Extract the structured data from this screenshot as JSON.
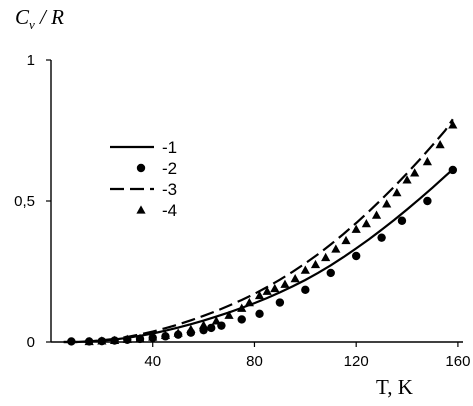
{
  "chart_data": {
    "type": "line",
    "title": "",
    "xlabel": "T, K",
    "ylabel": "C_v / R",
    "ylabel_parts": {
      "base": "C",
      "sub": "v",
      "rest": " / R"
    },
    "xlim": [
      0,
      160
    ],
    "ylim": [
      0,
      1
    ],
    "x_ticks": [
      40,
      80,
      120,
      160
    ],
    "x_tick_labels": [
      "40",
      "80",
      "120",
      "160"
    ],
    "y_ticks": [
      0,
      0.5,
      1
    ],
    "y_tick_labels": [
      "0",
      "0,5",
      "1"
    ],
    "grid": false,
    "legend_position": "left",
    "series": [
      {
        "name": "-1",
        "style": "solid-line",
        "color": "#000000",
        "x": [
          5,
          10,
          15,
          20,
          25,
          30,
          35,
          40,
          45,
          50,
          55,
          60,
          65,
          70,
          75,
          80,
          85,
          90,
          95,
          100,
          105,
          110,
          115,
          120,
          125,
          130,
          135,
          140,
          145,
          150,
          155,
          158
        ],
        "y": [
          0,
          0,
          0.002,
          0.005,
          0.009,
          0.015,
          0.022,
          0.03,
          0.04,
          0.051,
          0.063,
          0.076,
          0.09,
          0.105,
          0.121,
          0.138,
          0.156,
          0.176,
          0.197,
          0.22,
          0.245,
          0.272,
          0.301,
          0.332,
          0.364,
          0.398,
          0.433,
          0.47,
          0.508,
          0.547,
          0.588,
          0.612
        ]
      },
      {
        "name": "-2",
        "style": "circle-markers",
        "color": "#000000",
        "x": [
          8,
          15,
          20,
          25,
          30,
          35,
          40,
          45,
          50,
          55,
          60,
          63,
          67,
          75,
          82,
          90,
          100,
          110,
          120,
          130,
          138,
          148,
          158
        ],
        "y": [
          0.002,
          0.002,
          0.003,
          0.005,
          0.008,
          0.011,
          0.015,
          0.02,
          0.026,
          0.033,
          0.042,
          0.05,
          0.058,
          0.08,
          0.1,
          0.14,
          0.185,
          0.245,
          0.305,
          0.37,
          0.43,
          0.5,
          0.61
        ]
      },
      {
        "name": "-3",
        "style": "dashed-line",
        "color": "#000000",
        "x": [
          5,
          10,
          15,
          20,
          25,
          30,
          35,
          40,
          45,
          50,
          55,
          60,
          65,
          70,
          75,
          80,
          85,
          90,
          95,
          100,
          105,
          110,
          115,
          120,
          125,
          130,
          135,
          140,
          145,
          150,
          155,
          158
        ],
        "y": [
          0,
          0,
          0.002,
          0.006,
          0.011,
          0.018,
          0.027,
          0.037,
          0.049,
          0.062,
          0.077,
          0.093,
          0.11,
          0.129,
          0.149,
          0.171,
          0.195,
          0.221,
          0.249,
          0.279,
          0.311,
          0.346,
          0.383,
          0.422,
          0.463,
          0.506,
          0.551,
          0.598,
          0.647,
          0.698,
          0.75,
          0.79
        ]
      },
      {
        "name": "-4",
        "style": "triangle-markers",
        "color": "#000000",
        "x": [
          15,
          20,
          25,
          30,
          35,
          40,
          45,
          50,
          55,
          60,
          65,
          70,
          75,
          78,
          82,
          85,
          88,
          92,
          96,
          100,
          104,
          108,
          112,
          116,
          120,
          124,
          128,
          132,
          136,
          140,
          143,
          148,
          153,
          158
        ],
        "y": [
          0.002,
          0.004,
          0.006,
          0.01,
          0.013,
          0.018,
          0.024,
          0.032,
          0.045,
          0.06,
          0.075,
          0.095,
          0.12,
          0.14,
          0.165,
          0.18,
          0.19,
          0.205,
          0.225,
          0.255,
          0.275,
          0.3,
          0.33,
          0.36,
          0.4,
          0.42,
          0.45,
          0.49,
          0.53,
          0.575,
          0.6,
          0.64,
          0.7,
          0.77
        ]
      }
    ]
  }
}
